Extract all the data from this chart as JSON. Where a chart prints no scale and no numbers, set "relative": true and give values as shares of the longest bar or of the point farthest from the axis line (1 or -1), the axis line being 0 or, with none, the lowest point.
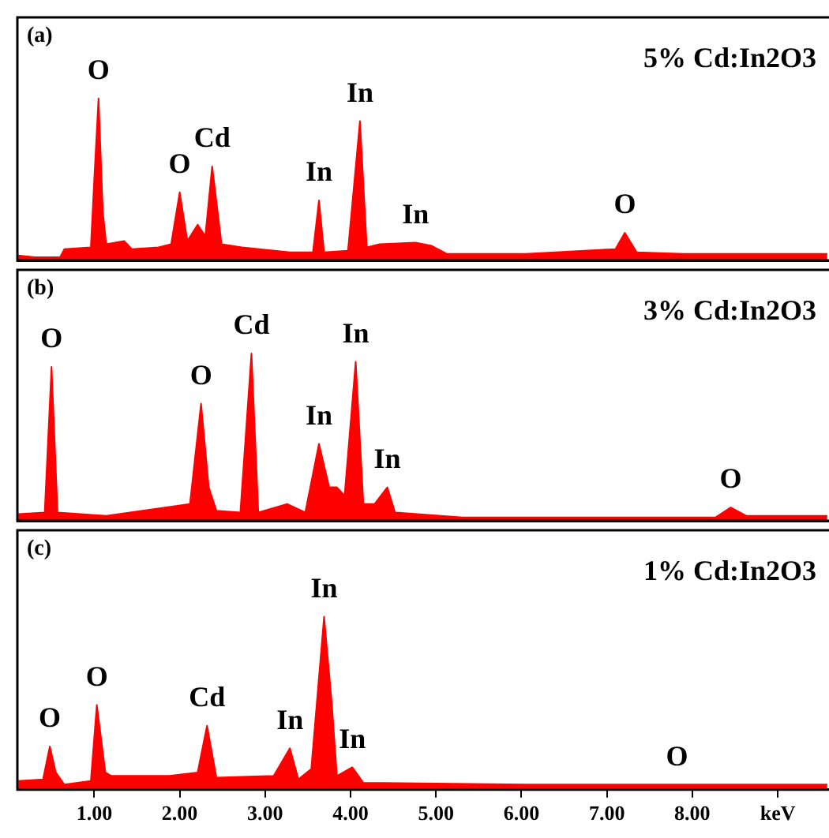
{
  "chart_data": [
    {
      "type": "area",
      "title": "(a)",
      "subtitle": "5% Cd:In2O3",
      "relative": true,
      "color": "#ff0000",
      "xlim": [
        0.1,
        9.6
      ],
      "x": [
        0.11,
        0.3,
        0.6,
        0.65,
        0.96,
        1.0,
        1.05,
        1.1,
        1.14,
        1.35,
        1.44,
        1.75,
        1.9,
        2.0,
        2.09,
        2.21,
        2.3,
        2.38,
        2.49,
        2.73,
        3.29,
        3.56,
        3.63,
        3.69,
        3.97,
        4.11,
        4.19,
        4.34,
        4.76,
        4.95,
        5.13,
        6.05,
        7.1,
        7.21,
        7.35,
        7.9,
        9.28,
        9.58
      ],
      "values": [
        0.03,
        0.02,
        0.02,
        0.07,
        0.08,
        0.5,
        1.0,
        0.3,
        0.1,
        0.12,
        0.07,
        0.08,
        0.1,
        0.42,
        0.12,
        0.22,
        0.15,
        0.58,
        0.1,
        0.08,
        0.05,
        0.05,
        0.37,
        0.05,
        0.06,
        0.86,
        0.08,
        0.1,
        0.11,
        0.09,
        0.04,
        0.04,
        0.07,
        0.17,
        0.05,
        0.04,
        0.04,
        0.04
      ],
      "annotations": [
        {
          "text": "O",
          "x": 1.05,
          "y": 1.0
        },
        {
          "text": "O",
          "x": 2.0,
          "y": 0.42
        },
        {
          "text": "Cd",
          "x": 2.38,
          "y": 0.58
        },
        {
          "text": "In",
          "x": 3.63,
          "y": 0.37
        },
        {
          "text": "In",
          "x": 4.11,
          "y": 0.86
        },
        {
          "text": "In",
          "x": 4.76,
          "y": 0.11
        },
        {
          "text": "O",
          "x": 7.21,
          "y": 0.17
        }
      ]
    },
    {
      "type": "area",
      "title": "(b)",
      "subtitle": "3% Cd:In2O3",
      "relative": true,
      "color": "#ff0000",
      "xlim": [
        0.1,
        9.6
      ],
      "x": [
        0.11,
        0.42,
        0.5,
        0.57,
        1.14,
        2.12,
        2.25,
        2.34,
        2.43,
        2.71,
        2.84,
        2.92,
        3.26,
        3.47,
        3.63,
        3.75,
        3.84,
        3.93,
        4.06,
        4.15,
        4.28,
        4.43,
        4.52,
        5.31,
        8.27,
        8.45,
        8.63,
        9.58
      ],
      "values": [
        0.04,
        0.05,
        0.92,
        0.05,
        0.03,
        0.1,
        0.7,
        0.2,
        0.06,
        0.05,
        1.0,
        0.05,
        0.1,
        0.05,
        0.46,
        0.2,
        0.2,
        0.15,
        0.95,
        0.1,
        0.1,
        0.2,
        0.05,
        0.02,
        0.02,
        0.08,
        0.03,
        0.03
      ],
      "annotations": [
        {
          "text": "O",
          "x": 0.5,
          "y": 0.92
        },
        {
          "text": "O",
          "x": 2.25,
          "y": 0.7
        },
        {
          "text": "Cd",
          "x": 2.84,
          "y": 1.0
        },
        {
          "text": "In",
          "x": 3.63,
          "y": 0.46
        },
        {
          "text": "In",
          "x": 4.06,
          "y": 0.95
        },
        {
          "text": "In",
          "x": 4.43,
          "y": 0.2
        },
        {
          "text": "O",
          "x": 8.45,
          "y": 0.08
        }
      ]
    },
    {
      "type": "area",
      "title": "(c)",
      "subtitle": "1% Cd:In2O3",
      "relative": true,
      "color": "#ff0000",
      "xlim": [
        0.1,
        9.6
      ],
      "xticks": [
        {
          "value": 1,
          "label": "1.00"
        },
        {
          "value": 2,
          "label": "2.00"
        },
        {
          "value": 3,
          "label": "3.00"
        },
        {
          "value": 4,
          "label": "4.00"
        },
        {
          "value": 5,
          "label": "5.00"
        },
        {
          "value": 6,
          "label": "6.00"
        },
        {
          "value": 7,
          "label": "7.00"
        },
        {
          "value": 8,
          "label": "8.00"
        },
        {
          "value": 9,
          "label": "keV"
        }
      ],
      "x": [
        0.11,
        0.4,
        0.48,
        0.55,
        0.65,
        0.96,
        1.03,
        1.13,
        1.2,
        1.88,
        2.21,
        2.32,
        2.43,
        3.1,
        3.29,
        3.39,
        3.54,
        3.69,
        3.78,
        3.84,
        4.02,
        4.15,
        6.05,
        7.82,
        9.58
      ],
      "values": [
        0.05,
        0.06,
        0.25,
        0.1,
        0.03,
        0.05,
        0.49,
        0.1,
        0.08,
        0.08,
        0.1,
        0.37,
        0.07,
        0.08,
        0.24,
        0.06,
        0.12,
        1.0,
        0.5,
        0.08,
        0.13,
        0.04,
        0.03,
        0.03,
        0.03
      ],
      "annotations": [
        {
          "text": "O",
          "x": 0.48,
          "y": 0.25
        },
        {
          "text": "O",
          "x": 1.03,
          "y": 0.49
        },
        {
          "text": "Cd",
          "x": 2.32,
          "y": 0.37
        },
        {
          "text": "In",
          "x": 3.29,
          "y": 0.24
        },
        {
          "text": "In",
          "x": 3.69,
          "y": 1.0
        },
        {
          "text": "In",
          "x": 4.02,
          "y": 0.13
        },
        {
          "text": "O",
          "x": 7.82,
          "y": 0.03
        }
      ]
    }
  ]
}
